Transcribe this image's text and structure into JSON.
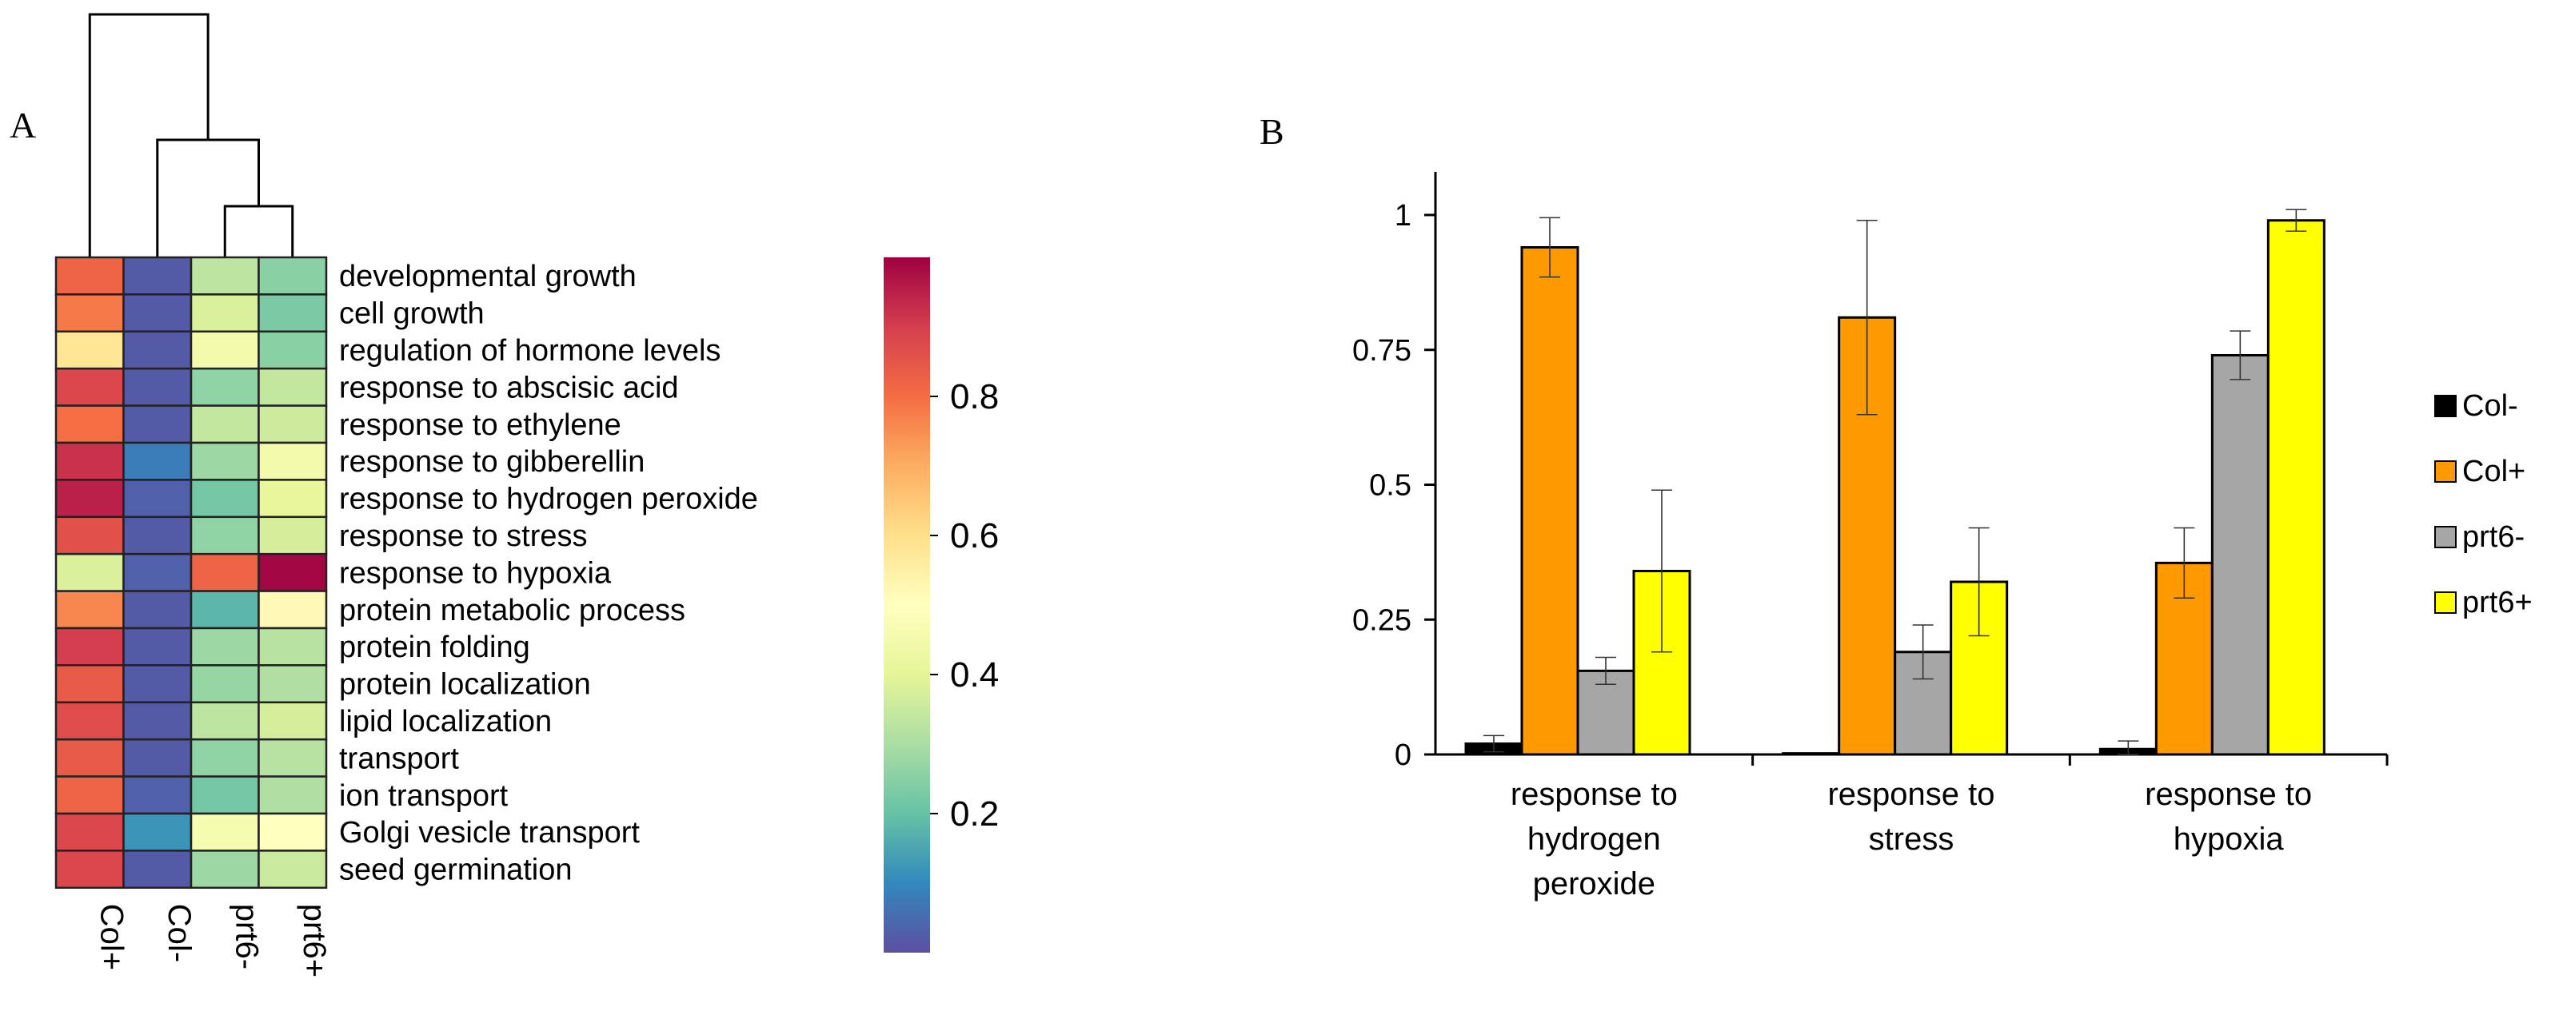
{
  "panels": {
    "a": "A",
    "b": "B"
  },
  "chart_data": [
    {
      "type": "heatmap",
      "title": "",
      "columns": [
        "Col+",
        "Col-",
        "prt6-",
        "prt6+"
      ],
      "rows": [
        "developmental growth",
        "cell growth",
        "regulation of hormone levels",
        "response to abscisic acid",
        "response to ethylene",
        "response to gibberellin",
        "response to hydrogen peroxide",
        "response to stress",
        "response to hypoxia",
        "protein metabolic process",
        "protein folding",
        "protein localization",
        "lipid localization",
        "transport",
        "ion transport",
        "Golgi vesicle transport",
        "seed germination"
      ],
      "values": [
        [
          0.82,
          0.02,
          0.33,
          0.25
        ],
        [
          0.78,
          0.02,
          0.38,
          0.23
        ],
        [
          0.58,
          0.02,
          0.45,
          0.25
        ],
        [
          0.88,
          0.02,
          0.26,
          0.34
        ],
        [
          0.8,
          0.02,
          0.34,
          0.36
        ],
        [
          0.92,
          0.08,
          0.28,
          0.45
        ],
        [
          0.95,
          0.03,
          0.22,
          0.41
        ],
        [
          0.86,
          0.02,
          0.26,
          0.37
        ],
        [
          0.38,
          0.03,
          0.82,
          0.99
        ],
        [
          0.76,
          0.02,
          0.18,
          0.52
        ],
        [
          0.9,
          0.02,
          0.28,
          0.32
        ],
        [
          0.84,
          0.02,
          0.27,
          0.31
        ],
        [
          0.87,
          0.02,
          0.33,
          0.37
        ],
        [
          0.84,
          0.02,
          0.26,
          0.32
        ],
        [
          0.82,
          0.03,
          0.22,
          0.31
        ],
        [
          0.88,
          0.12,
          0.46,
          0.5
        ],
        [
          0.88,
          0.02,
          0.28,
          0.35
        ]
      ],
      "dendrogram": "((Col+, (Col-, (prt6-, prt6+))))",
      "colorbar": {
        "range": [
          0,
          1
        ],
        "ticks": [
          0.2,
          0.4,
          0.6,
          0.8
        ],
        "tick_labels": [
          "0.2",
          "0.4",
          "0.6",
          "0.8"
        ],
        "colormap": "Spectral (reversed)"
      }
    },
    {
      "type": "bar",
      "title": "",
      "categories": [
        "response to hydrogen peroxide",
        "response to stress",
        "response to hypoxia"
      ],
      "category_labels": [
        [
          "response to",
          "hydrogen",
          "peroxide"
        ],
        [
          "response to",
          "stress"
        ],
        [
          "response to",
          "hypoxia"
        ]
      ],
      "series": [
        {
          "name": "Col-",
          "color": "#000000",
          "values": [
            0.02,
            0.002,
            0.01
          ],
          "errors": [
            0.015,
            0.0,
            0.015
          ]
        },
        {
          "name": "Col+",
          "color": "#FF9900",
          "values": [
            0.94,
            0.81,
            0.355
          ],
          "errors": [
            0.055,
            0.18,
            0.065
          ]
        },
        {
          "name": "prt6-",
          "color": "#A6A6A6",
          "values": [
            0.155,
            0.19,
            0.74
          ],
          "errors": [
            0.025,
            0.05,
            0.045
          ]
        },
        {
          "name": "prt6+",
          "color": "#FFFF00",
          "values": [
            0.34,
            0.32,
            0.99
          ],
          "errors": [
            0.15,
            0.1,
            0.02
          ]
        }
      ],
      "xlabel": "",
      "ylabel": "",
      "ylim": [
        0,
        1.08
      ],
      "yticks": [
        0,
        0.25,
        0.5,
        0.75,
        1
      ],
      "ytick_labels": [
        "0",
        "0.25",
        "0.5",
        "0.75",
        "1"
      ],
      "legend_position": "right"
    }
  ]
}
